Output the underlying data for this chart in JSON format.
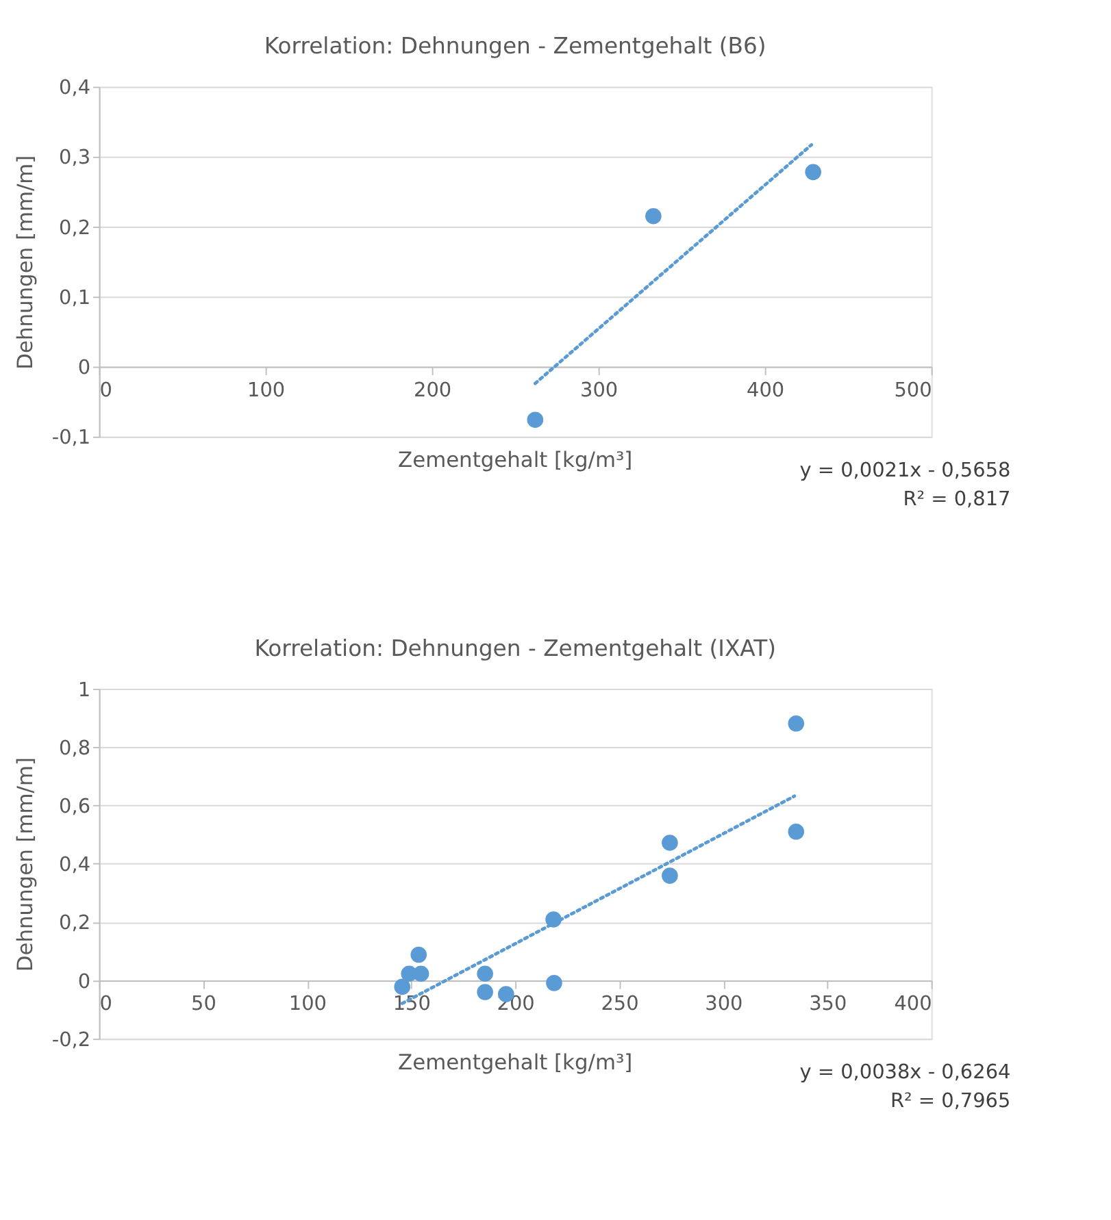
{
  "chart_data": [
    {
      "type": "scatter",
      "title": "Korrelation: Dehnungen - Zementgehalt (B6)",
      "xlabel": "Zementgehalt [kg/m³]",
      "ylabel": "Dehnungen [mm/m]",
      "x": [
        262,
        333,
        429
      ],
      "values": [
        -0.076,
        0.215,
        0.278
      ],
      "color": "#5b9bd5",
      "marker": "circle",
      "series": [
        {
          "type": "line",
          "x": [
            262,
            428
          ],
          "values": [
            -0.024,
            0.317
          ],
          "color": "#5b9bd5",
          "line_style": "dotted",
          "marker": "none"
        }
      ],
      "xlim": [
        0,
        500
      ],
      "xticks": [
        0,
        100,
        200,
        300,
        400,
        500
      ],
      "ylim": [
        -0.1,
        0.4
      ],
      "yticks": [
        {
          "value": -0.1,
          "label": "-0,1"
        },
        {
          "value": 0,
          "label": "0"
        },
        {
          "value": 0.1,
          "label": "0,1"
        },
        {
          "value": 0.2,
          "label": "0,2"
        },
        {
          "value": 0.3,
          "label": "0,3"
        },
        {
          "value": 0.4,
          "label": "0,4"
        }
      ],
      "grid": "y",
      "annotations": [
        "y = 0,0021x - 0,5658",
        "R² = 0,817"
      ]
    },
    {
      "type": "scatter",
      "title": "Korrelation: Dehnungen - Zementgehalt (IXAT)",
      "xlabel": "Zementgehalt [kg/m³]",
      "ylabel": "Dehnungen [mm/m]",
      "x": [
        145.7,
        149,
        153.6,
        154.7,
        185.5,
        185.5,
        195.6,
        218.4,
        218.7,
        274.3,
        274.3,
        335,
        335
      ],
      "values": [
        -0.022,
        0.023,
        0.088,
        0.023,
        0.023,
        -0.04,
        -0.047,
        0.209,
        -0.009,
        0.472,
        0.359,
        0.881,
        0.51
      ],
      "color": "#5b9bd5",
      "marker": "circle",
      "series": [
        {
          "type": "line",
          "x": [
            145.7,
            334.2
          ],
          "values": [
            -0.079,
            0.632
          ],
          "color": "#5b9bd5",
          "line_style": "dotted",
          "marker": "none"
        }
      ],
      "xlim": [
        0,
        400
      ],
      "xticks": [
        0,
        50,
        100,
        150,
        200,
        250,
        300,
        350,
        400
      ],
      "ylim": [
        -0.2,
        1
      ],
      "yticks": [
        {
          "value": -0.2,
          "label": "-0,2"
        },
        {
          "value": 0,
          "label": "0"
        },
        {
          "value": 0.2,
          "label": "0,2"
        },
        {
          "value": 0.4,
          "label": "0,4"
        },
        {
          "value": 0.6,
          "label": "0,6"
        },
        {
          "value": 0.8,
          "label": "0,8"
        },
        {
          "value": 1,
          "label": "1"
        }
      ],
      "grid": "y",
      "annotations": [
        "y = 0,0038x - 0,6264",
        "R² = 0,7965"
      ]
    }
  ]
}
